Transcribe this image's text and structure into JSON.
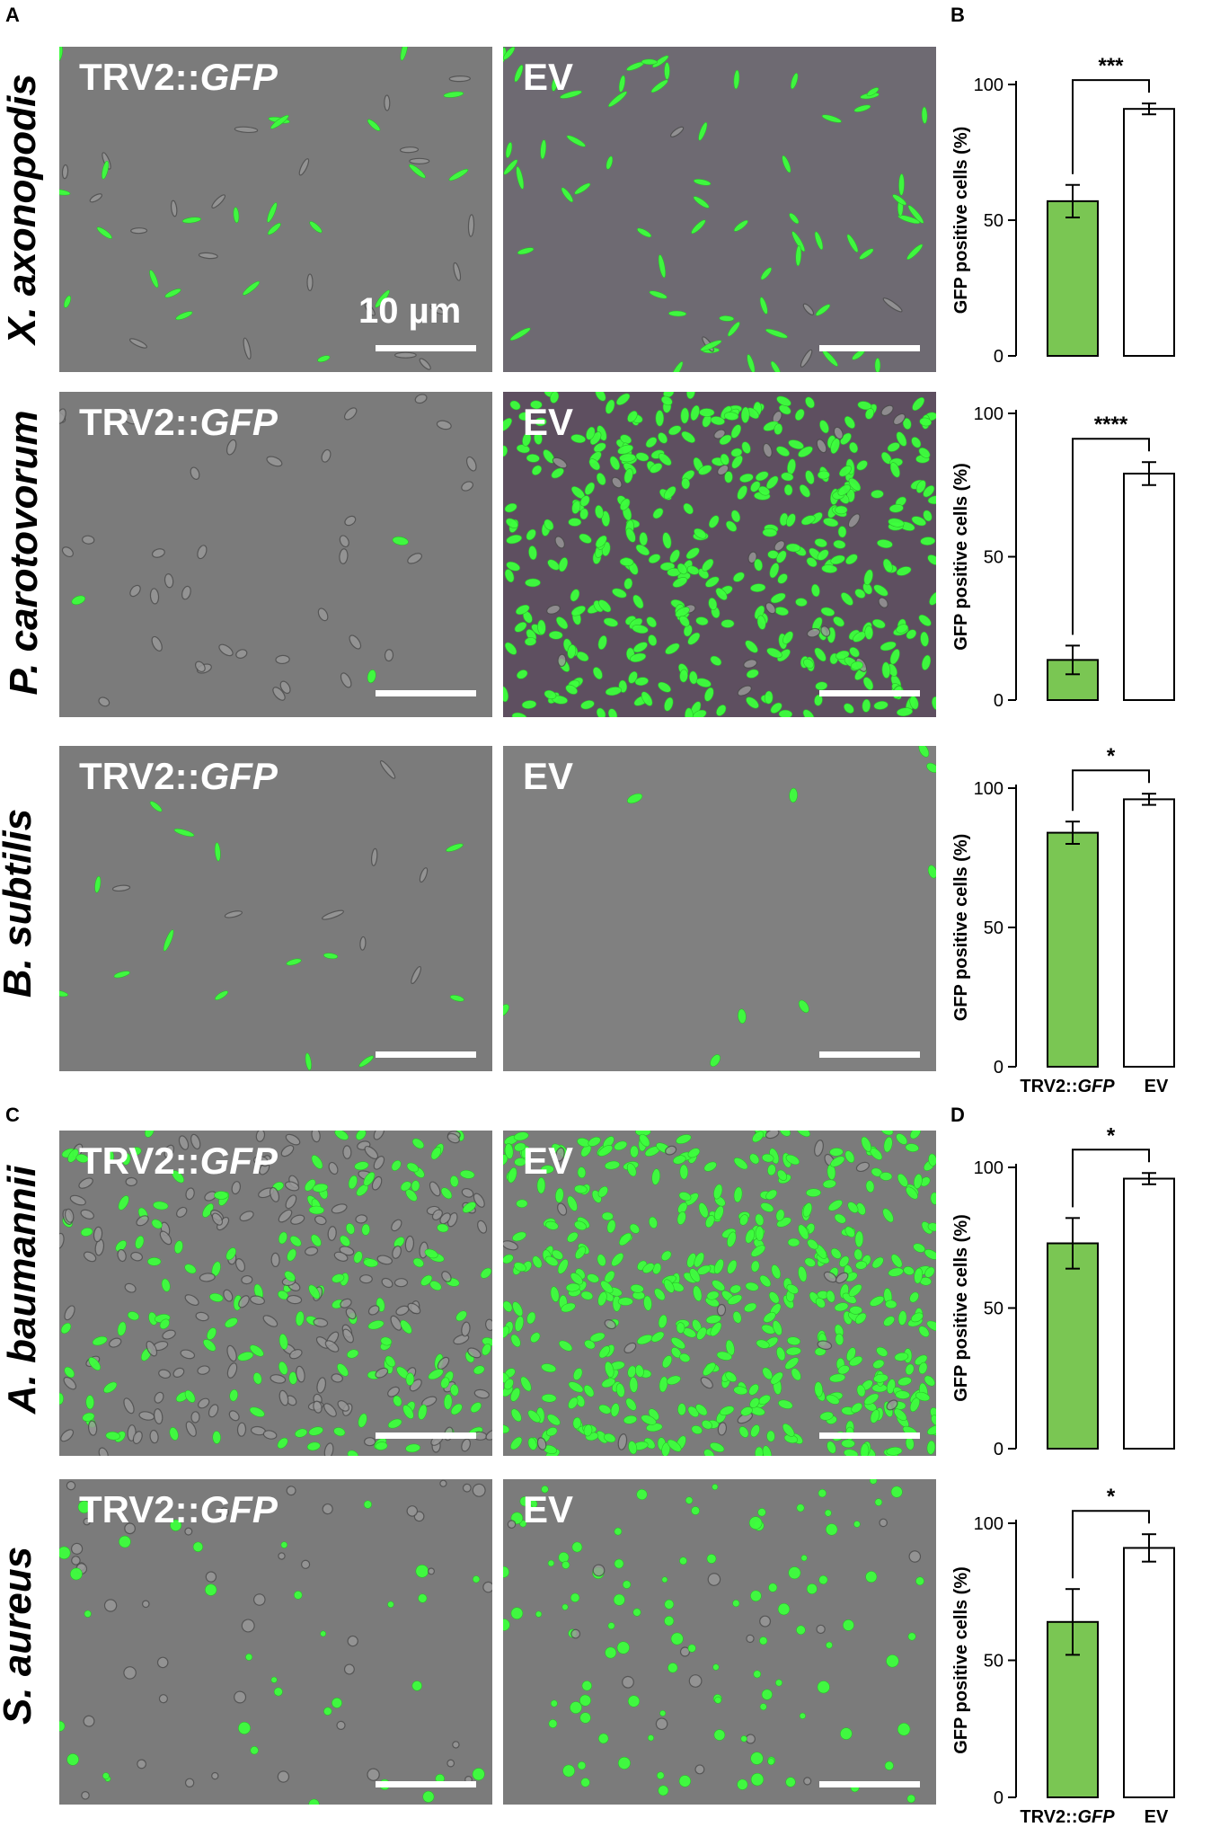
{
  "panel_letters": {
    "a": "A",
    "b": "B",
    "c": "C",
    "d": "D"
  },
  "groups": {
    "treatment": "TRV2::",
    "treatment_gene": "GFP",
    "control": "EV"
  },
  "scale_text": "10 µm",
  "colors": {
    "treatment_bar": "#7ac653",
    "control_bar": "#ffffff",
    "cell_green": "#3dff3d",
    "micro_bg": "#7b7b7b"
  },
  "rows": [
    {
      "species": "X. axonopodis"
    },
    {
      "species": "P. carotovorum"
    },
    {
      "species": "B. subtilis"
    },
    {
      "species": "A. baumannii"
    },
    {
      "species": "S. aureus"
    }
  ],
  "chart_data": [
    {
      "type": "bar",
      "categories": [
        "TRV2::GFP",
        "EV"
      ],
      "values": [
        57,
        91
      ],
      "errors": [
        6,
        2
      ],
      "ylabel": "GFP positive cells (%)",
      "yticks": [
        0,
        50,
        100
      ],
      "ylim": [
        0,
        100
      ],
      "significance": "***",
      "show_xticks": false
    },
    {
      "type": "bar",
      "categories": [
        "TRV2::GFP",
        "EV"
      ],
      "values": [
        14,
        79
      ],
      "errors": [
        5,
        4
      ],
      "ylabel": "GFP positive cells (%)",
      "yticks": [
        0,
        50,
        100
      ],
      "ylim": [
        0,
        100
      ],
      "significance": "****",
      "show_xticks": false
    },
    {
      "type": "bar",
      "categories": [
        "TRV2::GFP",
        "EV"
      ],
      "values": [
        84,
        96
      ],
      "errors": [
        4,
        2
      ],
      "ylabel": "GFP positive cells (%)",
      "yticks": [
        0,
        50,
        100
      ],
      "ylim": [
        0,
        100
      ],
      "significance": "*",
      "show_xticks": true
    },
    {
      "type": "bar",
      "categories": [
        "TRV2::GFP",
        "EV"
      ],
      "values": [
        73,
        96
      ],
      "errors": [
        9,
        2
      ],
      "ylabel": "GFP positive cells (%)",
      "yticks": [
        0,
        50,
        100
      ],
      "ylim": [
        0,
        100
      ],
      "significance": "*",
      "show_xticks": false
    },
    {
      "type": "bar",
      "categories": [
        "TRV2::GFP",
        "EV"
      ],
      "values": [
        64,
        91
      ],
      "errors": [
        12,
        5
      ],
      "ylabel": "GFP positive cells (%)",
      "yticks": [
        0,
        50,
        100
      ],
      "ylim": [
        0,
        100
      ],
      "significance": "*",
      "show_xticks": true
    }
  ]
}
